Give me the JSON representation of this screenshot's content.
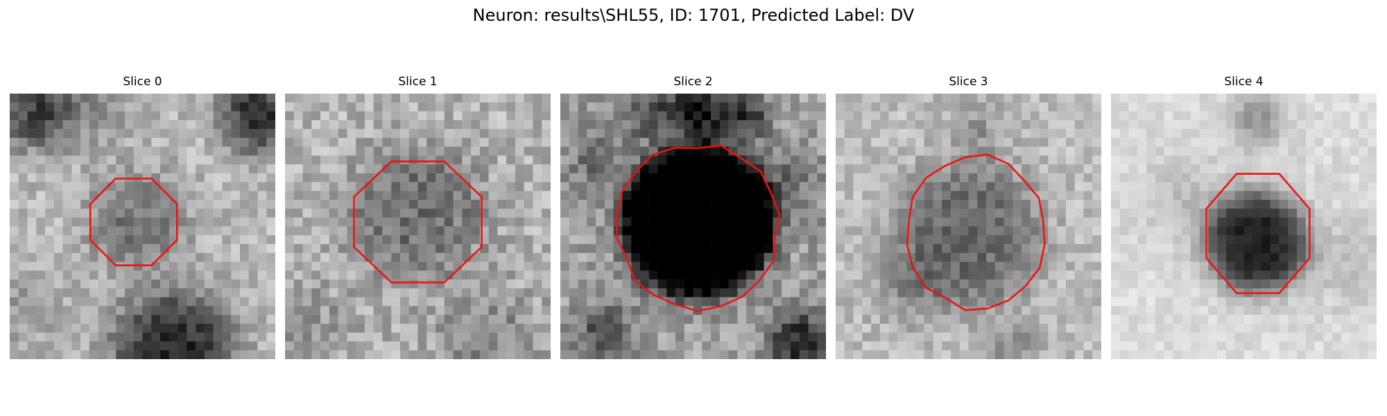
{
  "figure": {
    "title": "Neuron: results\\SHL55, ID: 1701, Predicted Label: DV"
  },
  "contour_color": "#ee1111",
  "panels": [
    {
      "title": "Slice 0"
    },
    {
      "title": "Slice 1"
    },
    {
      "title": "Slice 2"
    },
    {
      "title": "Slice 3"
    },
    {
      "title": "Slice 4"
    }
  ]
}
